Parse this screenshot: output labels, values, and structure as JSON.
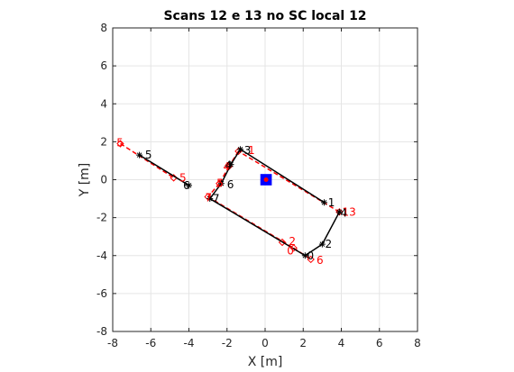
{
  "chart_data": {
    "type": "line",
    "title": "Scans 12 e 13 no SC local 12",
    "xlabel": "X [m]",
    "ylabel": "Y [m]",
    "xlim": [
      -8,
      8
    ],
    "ylim": [
      -8,
      8
    ],
    "xticks": [
      -8,
      -6,
      -4,
      -2,
      0,
      2,
      4,
      6,
      8
    ],
    "yticks": [
      -8,
      -6,
      -4,
      -2,
      0,
      2,
      4,
      6,
      8
    ],
    "grid": true,
    "aspect": "equal",
    "colors": {
      "scan12": "#000000",
      "scan13": "#ff0000",
      "sensor_square": "#0000ff",
      "sensor_dot": "#ff0000",
      "grid": "#e5e5e5",
      "axis": "#262626"
    },
    "sensor": {
      "x": 0.05,
      "y": 0.0,
      "size": 0.6
    },
    "series": [
      {
        "segments": [
          [
            [
              3.1,
              -1.2
            ],
            [
              -1.3,
              1.6
            ]
          ],
          [
            [
              -1.3,
              1.6
            ],
            [
              -1.8,
              0.8
            ]
          ],
          [
            [
              -1.8,
              0.8
            ],
            [
              -2.3,
              -0.2
            ]
          ],
          [
            [
              -2.3,
              -0.2
            ],
            [
              -2.9,
              -1.0
            ]
          ],
          [
            [
              -2.9,
              -1.0
            ],
            [
              2.1,
              -4.0
            ]
          ],
          [
            [
              2.1,
              -4.0
            ],
            [
              3.0,
              -3.4
            ]
          ],
          [
            [
              3.0,
              -3.4
            ],
            [
              3.9,
              -1.7
            ]
          ],
          [
            [
              -6.6,
              1.3
            ],
            [
              -4.0,
              -0.3
            ]
          ]
        ],
        "points": [
          [
            3.1,
            -1.2
          ],
          [
            -1.3,
            1.6
          ],
          [
            -1.8,
            0.8
          ],
          [
            -2.3,
            -0.2
          ],
          [
            -2.9,
            -1.0
          ],
          [
            2.1,
            -4.0
          ],
          [
            3.0,
            -3.4
          ],
          [
            3.9,
            -1.7
          ],
          [
            -6.6,
            1.3
          ],
          [
            -4.0,
            -0.3
          ]
        ],
        "labels": [
          {
            "text": "1",
            "x": 3.3,
            "y": -1.2
          },
          {
            "text": "3",
            "x": -1.1,
            "y": 1.55
          },
          {
            "text": "4",
            "x": -2.1,
            "y": 0.75
          },
          {
            "text": "6",
            "x": -2.0,
            "y": -0.25
          },
          {
            "text": "7",
            "x": -2.75,
            "y": -1.0
          },
          {
            "text": "0",
            "x": 2.2,
            "y": -4.0
          },
          {
            "text": "2",
            "x": 3.15,
            "y": -3.4
          },
          {
            "text": "4",
            "x": 3.95,
            "y": -1.75
          },
          {
            "text": "5",
            "x": -6.3,
            "y": 1.3
          },
          {
            "text": "6",
            "x": -4.3,
            "y": -0.3
          }
        ]
      },
      {
        "segments": [
          [
            [
              3.9,
              -1.7
            ],
            [
              -1.4,
              1.5
            ]
          ],
          [
            [
              -1.4,
              1.5
            ],
            [
              -1.9,
              0.7
            ]
          ],
          [
            [
              -1.9,
              0.7
            ],
            [
              -2.4,
              -0.2
            ]
          ],
          [
            [
              -2.4,
              -0.2
            ],
            [
              -3.0,
              -0.9
            ]
          ],
          [
            [
              -3.0,
              -0.9
            ],
            [
              1.5,
              -3.6
            ]
          ],
          [
            [
              1.5,
              -3.6
            ],
            [
              2.4,
              -4.2
            ]
          ],
          [
            [
              -7.6,
              1.9
            ],
            [
              -4.8,
              0.1
            ]
          ]
        ],
        "points": [
          [
            3.9,
            -1.7
          ],
          [
            -1.4,
            1.5
          ],
          [
            -1.9,
            0.7
          ],
          [
            -2.4,
            -0.2
          ],
          [
            -3.0,
            -0.9
          ],
          [
            0.9,
            -3.3
          ],
          [
            1.5,
            -3.6
          ],
          [
            2.4,
            -4.2
          ],
          [
            -7.6,
            1.9
          ],
          [
            -4.8,
            0.1
          ]
        ],
        "labels": [
          {
            "text": "13",
            "x": 4.05,
            "y": -1.7
          },
          {
            "text": "1",
            "x": -0.9,
            "y": 1.55
          },
          {
            "text": "4",
            "x": -2.2,
            "y": 0.7
          },
          {
            "text": "5",
            "x": -2.55,
            "y": -0.2
          },
          {
            "text": "7",
            "x": -3.15,
            "y": -0.95
          },
          {
            "text": "2",
            "x": 1.25,
            "y": -3.25
          },
          {
            "text": "0",
            "x": 1.15,
            "y": -3.75
          },
          {
            "text": "6",
            "x": 2.7,
            "y": -4.25
          },
          {
            "text": "5",
            "x": -7.8,
            "y": 1.95
          },
          {
            "text": "5",
            "x": -4.5,
            "y": 0.1
          }
        ]
      }
    ]
  }
}
